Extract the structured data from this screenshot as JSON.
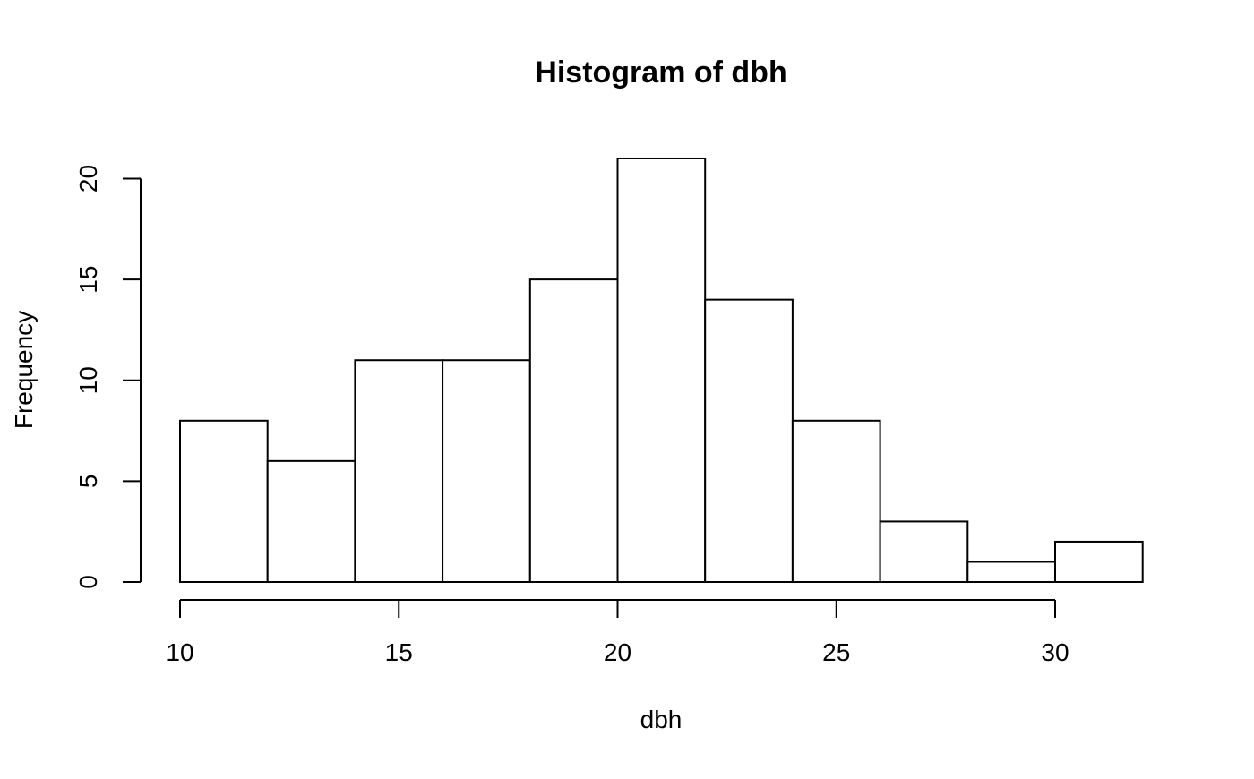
{
  "chart_data": {
    "type": "bar",
    "title": "Histogram of dbh",
    "xlabel": "dbh",
    "ylabel": "Frequency",
    "bins": [
      {
        "start": 10,
        "end": 12,
        "count": 8
      },
      {
        "start": 12,
        "end": 14,
        "count": 6
      },
      {
        "start": 14,
        "end": 16,
        "count": 11
      },
      {
        "start": 16,
        "end": 18,
        "count": 11
      },
      {
        "start": 18,
        "end": 20,
        "count": 15
      },
      {
        "start": 20,
        "end": 22,
        "count": 21
      },
      {
        "start": 22,
        "end": 24,
        "count": 14
      },
      {
        "start": 24,
        "end": 26,
        "count": 8
      },
      {
        "start": 26,
        "end": 28,
        "count": 3
      },
      {
        "start": 28,
        "end": 30,
        "count": 1
      },
      {
        "start": 30,
        "end": 32,
        "count": 2
      }
    ],
    "xlim": [
      10,
      32
    ],
    "ylim": [
      0,
      21
    ],
    "x_ticks": [
      10,
      15,
      20,
      25,
      30
    ],
    "y_ticks": [
      0,
      5,
      10,
      15,
      20
    ],
    "grid": false,
    "legend": "none",
    "colors": {
      "bar_fill": "#ffffff",
      "bar_stroke": "#000000",
      "axis": "#000000"
    }
  }
}
